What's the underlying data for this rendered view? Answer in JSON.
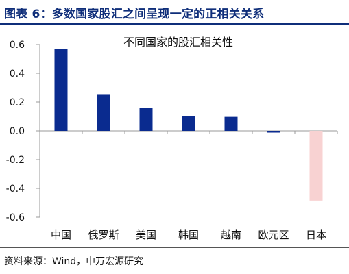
{
  "header": {
    "title": "图表 6：多数国家股汇之间呈现一定的正相关关系"
  },
  "footer": {
    "source": "资料来源：Wind，申万宏源研究"
  },
  "colors": {
    "positive": "#0a2b8f",
    "negative": "#f8d2d2",
    "title": "#0f2e7a",
    "axis": "#9a9a9a"
  },
  "chart_data": {
    "type": "bar",
    "title": "不同国家的股汇相关性",
    "categories": [
      "中国",
      "俄罗斯",
      "美国",
      "韩国",
      "越南",
      "欧元区",
      "日本"
    ],
    "values": [
      0.57,
      0.255,
      0.16,
      0.1,
      0.097,
      -0.012,
      -0.485
    ],
    "ylim": [
      -0.6,
      0.6
    ],
    "yticks": [
      "0.6",
      "0.4",
      "0.2",
      "0.0",
      "-0.2",
      "-0.4",
      "-0.6"
    ],
    "grid": false,
    "legend": "none"
  }
}
